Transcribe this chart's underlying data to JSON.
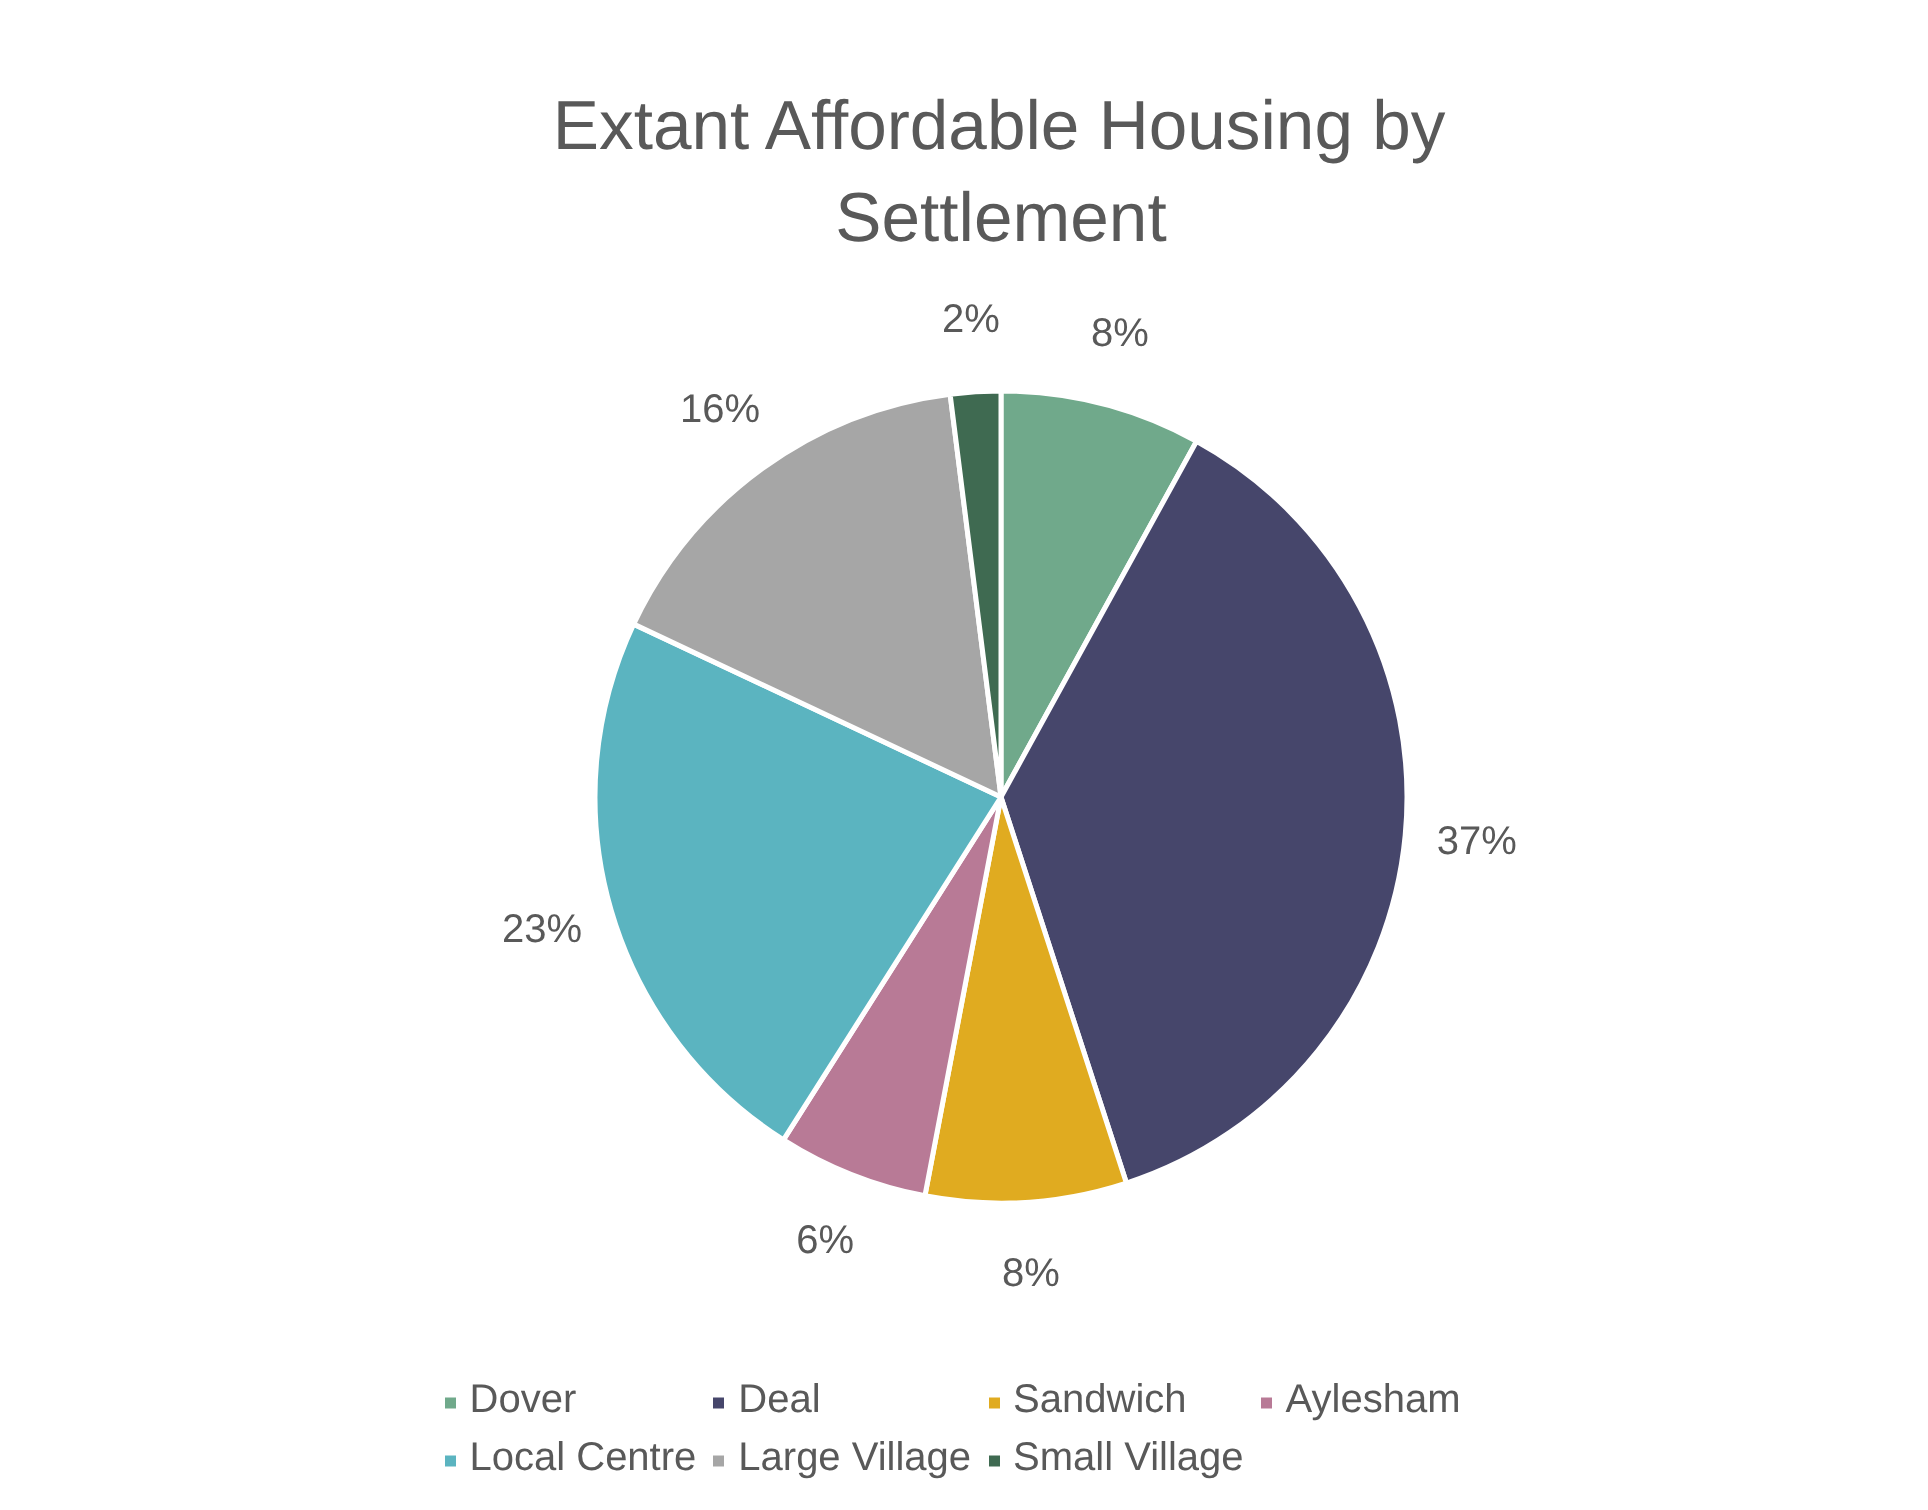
{
  "chart_data": {
    "type": "pie",
    "title": "Extant Affordable Housing by Settlement",
    "categories": [
      "Dover",
      "Deal",
      "Sandwich",
      "Aylesham",
      "Local Centre",
      "Large Village",
      "Small Village"
    ],
    "values": [
      8,
      37,
      8,
      6,
      23,
      16,
      2
    ],
    "value_labels": [
      "8%",
      "37%",
      "8%",
      "6%",
      "23%",
      "16%",
      "2%"
    ],
    "colors": [
      "#70a98b",
      "#46466b",
      "#e0ab20",
      "#b87a96",
      "#5bb4c0",
      "#a6a6a6",
      "#3f6a51"
    ],
    "legend": "bottom"
  }
}
